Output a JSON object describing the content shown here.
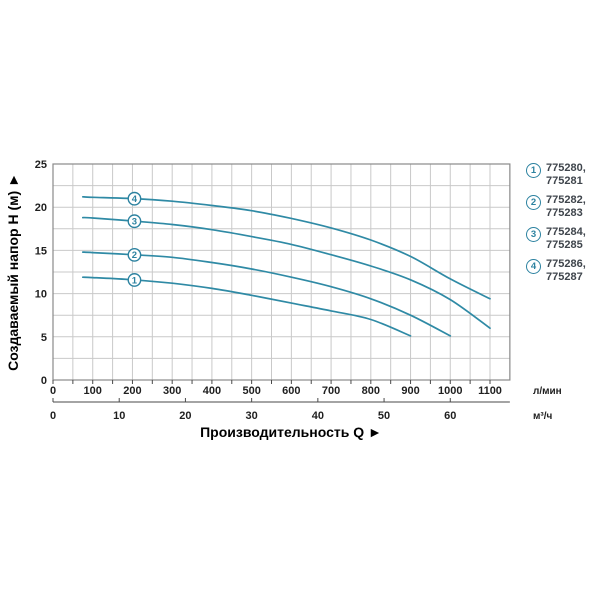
{
  "page": {
    "background": "#ffffff"
  },
  "legend": {
    "items": [
      {
        "num": "1",
        "lines": [
          "775280,",
          "775281"
        ]
      },
      {
        "num": "2",
        "lines": [
          "775282,",
          "775283"
        ]
      },
      {
        "num": "3",
        "lines": [
          "775284,",
          "775285"
        ]
      },
      {
        "num": "4",
        "lines": [
          "775286,",
          "775287"
        ]
      }
    ]
  },
  "chart_data": {
    "type": "line",
    "title": "",
    "xlabel": "Производительность Q",
    "xlabel_arrow": "►",
    "ylabel": "Создаваемый напор H (м)",
    "ylabel_arrow": "▲",
    "x_axis": {
      "unit": "л/мин",
      "tick_labels": [
        0,
        100,
        200,
        300,
        400,
        500,
        600,
        700,
        800,
        900,
        1000,
        1100
      ],
      "minor_step": 50,
      "range": [
        0,
        1150
      ]
    },
    "x_axis_secondary": {
      "unit": "м³/ч",
      "tick_labels": [
        0,
        10,
        20,
        30,
        40,
        50,
        60
      ]
    },
    "y_axis": {
      "tick_labels": [
        0,
        5,
        10,
        15,
        20,
        25
      ],
      "range": [
        0,
        25
      ],
      "grid_step": 2.5
    },
    "grid": true,
    "legend_position": "right",
    "curve_label_q": 205,
    "series": [
      {
        "label": "1",
        "models": [
          "775280",
          "775281"
        ],
        "points": [
          [
            75,
            11.9
          ],
          [
            100,
            11.85
          ],
          [
            200,
            11.6
          ],
          [
            300,
            11.2
          ],
          [
            400,
            10.6
          ],
          [
            500,
            9.8
          ],
          [
            600,
            8.9
          ],
          [
            700,
            8.0
          ],
          [
            800,
            7.0
          ],
          [
            900,
            5.1
          ]
        ]
      },
      {
        "label": "2",
        "models": [
          "775282",
          "775283"
        ],
        "points": [
          [
            75,
            14.8
          ],
          [
            100,
            14.75
          ],
          [
            200,
            14.5
          ],
          [
            300,
            14.2
          ],
          [
            400,
            13.6
          ],
          [
            500,
            12.85
          ],
          [
            600,
            11.9
          ],
          [
            700,
            10.8
          ],
          [
            800,
            9.4
          ],
          [
            900,
            7.5
          ],
          [
            1000,
            5.1
          ]
        ]
      },
      {
        "label": "3",
        "models": [
          "775284",
          "775285"
        ],
        "points": [
          [
            75,
            18.8
          ],
          [
            100,
            18.75
          ],
          [
            200,
            18.4
          ],
          [
            300,
            18.0
          ],
          [
            400,
            17.4
          ],
          [
            500,
            16.6
          ],
          [
            600,
            15.7
          ],
          [
            700,
            14.5
          ],
          [
            800,
            13.2
          ],
          [
            900,
            11.6
          ],
          [
            1000,
            9.3
          ],
          [
            1100,
            6.0
          ]
        ]
      },
      {
        "label": "4",
        "models": [
          "775286",
          "775287"
        ],
        "points": [
          [
            75,
            21.2
          ],
          [
            100,
            21.15
          ],
          [
            200,
            21.0
          ],
          [
            300,
            20.7
          ],
          [
            400,
            20.2
          ],
          [
            500,
            19.6
          ],
          [
            600,
            18.7
          ],
          [
            700,
            17.6
          ],
          [
            800,
            16.2
          ],
          [
            900,
            14.3
          ],
          [
            1000,
            11.7
          ],
          [
            1100,
            9.4
          ]
        ]
      }
    ],
    "colors": {
      "curve": "#2f8aa5",
      "grid": "#c9c9c9",
      "axis_border": "#8a8a8a",
      "text": "#1f1f1f",
      "badge": "#2c82a0",
      "legend_text": "#3f454c"
    }
  }
}
